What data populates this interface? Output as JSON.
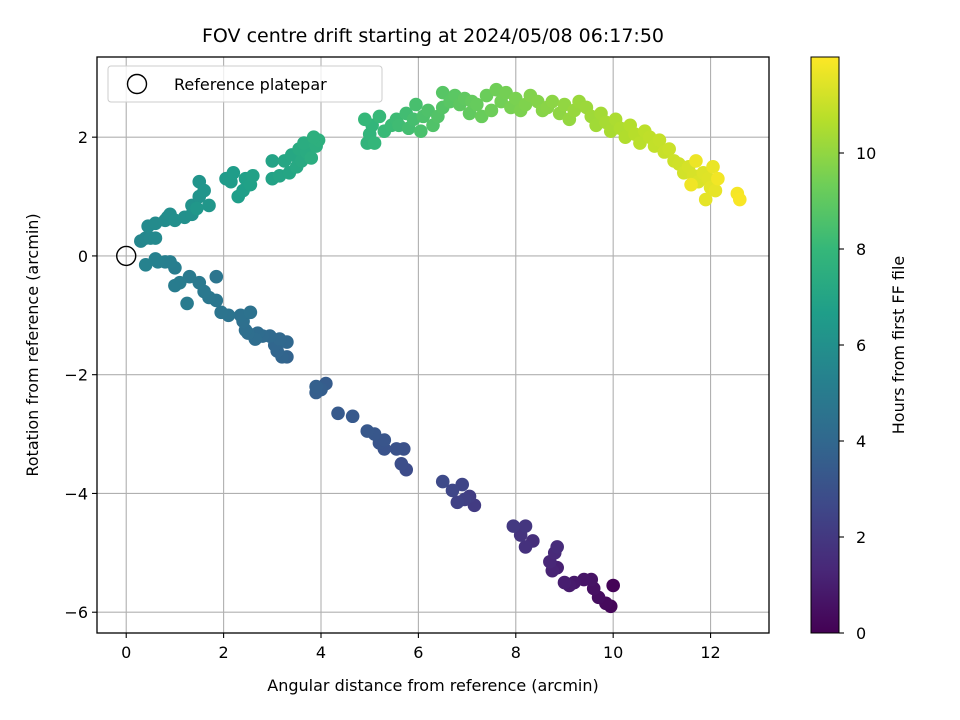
{
  "chart_data": {
    "type": "scatter",
    "title": "FOV centre drift starting at 2024/05/08 06:17:50",
    "xlabel": "Angular distance from reference (arcmin)",
    "ylabel": "Rotation from reference (arcmin)",
    "xlim": [
      -0.6,
      13.2
    ],
    "ylim": [
      -6.35,
      3.35
    ],
    "xticks": [
      0,
      2,
      4,
      6,
      8,
      10,
      12
    ],
    "yticks": [
      -6,
      -4,
      -2,
      0,
      2
    ],
    "grid": true,
    "legend": {
      "location": "upper-left",
      "entries": [
        "Reference platepar"
      ]
    },
    "reference_point": {
      "x": 0,
      "y": 0
    },
    "colorbar": {
      "label": "Hours from first FF file",
      "colormap": "viridis",
      "range": [
        0,
        12
      ],
      "ticks": [
        0,
        2,
        4,
        6,
        8,
        10
      ]
    },
    "points": [
      [
        10.0,
        -5.55,
        0.1
      ],
      [
        9.95,
        -5.9,
        0.2
      ],
      [
        9.85,
        -5.85,
        0.3
      ],
      [
        9.7,
        -5.75,
        0.4
      ],
      [
        9.6,
        -5.6,
        0.5
      ],
      [
        9.55,
        -5.45,
        0.6
      ],
      [
        9.4,
        -5.45,
        0.7
      ],
      [
        9.2,
        -5.5,
        0.8
      ],
      [
        9.1,
        -5.55,
        0.9
      ],
      [
        9.0,
        -5.5,
        1.0
      ],
      [
        8.85,
        -5.25,
        1.1
      ],
      [
        8.75,
        -5.3,
        1.2
      ],
      [
        8.7,
        -5.15,
        1.3
      ],
      [
        8.8,
        -5.0,
        1.4
      ],
      [
        8.85,
        -4.9,
        1.5
      ],
      [
        8.35,
        -4.8,
        1.6
      ],
      [
        8.2,
        -4.9,
        1.7
      ],
      [
        8.1,
        -4.7,
        1.8
      ],
      [
        8.2,
        -4.55,
        1.9
      ],
      [
        7.95,
        -4.55,
        2.0
      ],
      [
        7.15,
        -4.2,
        2.1
      ],
      [
        7.05,
        -4.05,
        2.2
      ],
      [
        6.95,
        -4.1,
        2.3
      ],
      [
        6.8,
        -4.15,
        2.4
      ],
      [
        6.9,
        -3.85,
        2.5
      ],
      [
        6.7,
        -3.95,
        2.6
      ],
      [
        6.5,
        -3.8,
        2.7
      ],
      [
        5.75,
        -3.6,
        2.8
      ],
      [
        5.65,
        -3.5,
        2.9
      ],
      [
        5.7,
        -3.25,
        3.0
      ],
      [
        5.55,
        -3.25,
        3.05
      ],
      [
        5.3,
        -3.25,
        3.1
      ],
      [
        5.2,
        -3.15,
        3.15
      ],
      [
        5.3,
        -3.1,
        3.2
      ],
      [
        5.1,
        -3.0,
        3.25
      ],
      [
        4.95,
        -2.95,
        3.3
      ],
      [
        4.65,
        -2.7,
        3.35
      ],
      [
        4.35,
        -2.65,
        3.4
      ],
      [
        4.1,
        -2.15,
        3.5
      ],
      [
        4.0,
        -2.25,
        3.55
      ],
      [
        3.9,
        -2.3,
        3.6
      ],
      [
        3.9,
        -2.2,
        3.65
      ],
      [
        3.3,
        -1.7,
        3.8
      ],
      [
        3.2,
        -1.7,
        3.85
      ],
      [
        3.1,
        -1.6,
        3.9
      ],
      [
        3.05,
        -1.5,
        3.95
      ],
      [
        3.3,
        -1.45,
        4.0
      ],
      [
        3.15,
        -1.4,
        4.05
      ],
      [
        2.95,
        -1.35,
        4.1
      ],
      [
        2.8,
        -1.35,
        4.15
      ],
      [
        2.7,
        -1.3,
        4.2
      ],
      [
        2.65,
        -1.4,
        4.25
      ],
      [
        2.5,
        -1.3,
        4.3
      ],
      [
        2.45,
        -1.25,
        4.35
      ],
      [
        2.4,
        -1.1,
        4.4
      ],
      [
        2.35,
        -1.0,
        4.45
      ],
      [
        2.55,
        -0.95,
        4.5
      ],
      [
        2.1,
        -1.0,
        4.55
      ],
      [
        1.95,
        -0.95,
        4.6
      ],
      [
        1.85,
        -0.35,
        4.65
      ],
      [
        1.85,
        -0.75,
        4.7
      ],
      [
        1.7,
        -0.7,
        4.75
      ],
      [
        1.6,
        -0.6,
        4.8
      ],
      [
        1.5,
        -0.45,
        4.85
      ],
      [
        1.3,
        -0.35,
        4.9
      ],
      [
        1.25,
        -0.8,
        4.95
      ],
      [
        1.1,
        -0.45,
        5.0
      ],
      [
        1.0,
        -0.5,
        5.05
      ],
      [
        1.0,
        -0.2,
        5.1
      ],
      [
        0.9,
        -0.1,
        5.15
      ],
      [
        0.8,
        -0.1,
        5.2
      ],
      [
        0.65,
        -0.1,
        5.25
      ],
      [
        0.6,
        -0.05,
        5.3
      ],
      [
        0.4,
        -0.15,
        5.35
      ],
      [
        0.3,
        0.25,
        5.5
      ],
      [
        0.4,
        0.3,
        5.55
      ],
      [
        0.5,
        0.3,
        5.6
      ],
      [
        0.6,
        0.3,
        5.65
      ],
      [
        0.45,
        0.5,
        5.7
      ],
      [
        0.6,
        0.55,
        5.75
      ],
      [
        0.8,
        0.6,
        5.8
      ],
      [
        0.85,
        0.65,
        5.85
      ],
      [
        0.9,
        0.7,
        5.9
      ],
      [
        1.0,
        0.6,
        5.95
      ],
      [
        1.2,
        0.65,
        6.0
      ],
      [
        1.35,
        0.7,
        6.05
      ],
      [
        1.35,
        0.85,
        6.1
      ],
      [
        1.5,
        1.0,
        6.15
      ],
      [
        1.5,
        1.25,
        6.2
      ],
      [
        1.6,
        1.1,
        6.25
      ],
      [
        1.7,
        0.85,
        6.3
      ],
      [
        1.45,
        0.8,
        6.35
      ],
      [
        2.05,
        1.3,
        6.5
      ],
      [
        2.15,
        1.25,
        6.55
      ],
      [
        2.2,
        1.4,
        6.6
      ],
      [
        2.3,
        1.0,
        6.65
      ],
      [
        2.4,
        1.1,
        6.7
      ],
      [
        2.45,
        1.3,
        6.75
      ],
      [
        2.55,
        1.2,
        6.8
      ],
      [
        2.6,
        1.35,
        6.85
      ],
      [
        3.0,
        1.3,
        6.9
      ],
      [
        3.0,
        1.6,
        6.95
      ],
      [
        3.15,
        1.35,
        7.0
      ],
      [
        3.35,
        1.4,
        7.05
      ],
      [
        3.25,
        1.6,
        7.1
      ],
      [
        3.4,
        1.7,
        7.15
      ],
      [
        3.5,
        1.5,
        7.2
      ],
      [
        3.6,
        1.6,
        7.25
      ],
      [
        3.55,
        1.8,
        7.3
      ],
      [
        3.7,
        1.75,
        7.35
      ],
      [
        3.65,
        1.9,
        7.4
      ],
      [
        3.8,
        1.65,
        7.45
      ],
      [
        3.9,
        1.85,
        7.5
      ],
      [
        3.95,
        1.95,
        7.55
      ],
      [
        3.85,
        2.0,
        7.6
      ],
      [
        4.95,
        1.9,
        7.8
      ],
      [
        5.0,
        2.05,
        7.85
      ],
      [
        5.05,
        2.2,
        7.9
      ],
      [
        5.1,
        1.9,
        7.95
      ],
      [
        4.9,
        2.3,
        8.0
      ],
      [
        5.2,
        2.35,
        8.05
      ],
      [
        5.3,
        2.1,
        8.1
      ],
      [
        5.45,
        2.2,
        8.15
      ],
      [
        5.55,
        2.3,
        8.2
      ],
      [
        5.6,
        2.2,
        8.25
      ],
      [
        5.75,
        2.4,
        8.3
      ],
      [
        5.8,
        2.15,
        8.35
      ],
      [
        5.9,
        2.3,
        8.4
      ],
      [
        5.95,
        2.55,
        8.45
      ],
      [
        6.05,
        2.1,
        8.5
      ],
      [
        6.1,
        2.35,
        8.55
      ],
      [
        6.2,
        2.45,
        8.6
      ],
      [
        6.3,
        2.2,
        8.65
      ],
      [
        6.4,
        2.35,
        8.7
      ],
      [
        6.5,
        2.5,
        8.75
      ],
      [
        6.5,
        2.75,
        8.8
      ],
      [
        6.65,
        2.6,
        8.85
      ],
      [
        6.75,
        2.7,
        8.9
      ],
      [
        6.85,
        2.55,
        8.95
      ],
      [
        6.95,
        2.65,
        9.0
      ],
      [
        7.05,
        2.4,
        9.05
      ],
      [
        7.1,
        2.6,
        9.1
      ],
      [
        7.2,
        2.55,
        9.15
      ],
      [
        7.3,
        2.35,
        9.2
      ],
      [
        7.4,
        2.7,
        9.25
      ],
      [
        7.5,
        2.45,
        9.3
      ],
      [
        7.6,
        2.8,
        9.35
      ],
      [
        7.7,
        2.6,
        9.4
      ],
      [
        7.8,
        2.75,
        9.45
      ],
      [
        7.9,
        2.5,
        9.5
      ],
      [
        8.0,
        2.65,
        9.55
      ],
      [
        8.1,
        2.45,
        9.6
      ],
      [
        8.2,
        2.55,
        9.65
      ],
      [
        8.3,
        2.7,
        9.7
      ],
      [
        8.45,
        2.6,
        9.75
      ],
      [
        8.55,
        2.45,
        9.8
      ],
      [
        8.65,
        2.5,
        9.85
      ],
      [
        8.75,
        2.6,
        9.9
      ],
      [
        8.9,
        2.4,
        9.95
      ],
      [
        9.0,
        2.55,
        10.0
      ],
      [
        9.1,
        2.3,
        10.05
      ],
      [
        9.2,
        2.45,
        10.1
      ],
      [
        9.3,
        2.6,
        10.15
      ],
      [
        9.45,
        2.5,
        10.2
      ],
      [
        9.55,
        2.35,
        10.25
      ],
      [
        9.65,
        2.2,
        10.3
      ],
      [
        9.75,
        2.4,
        10.35
      ],
      [
        9.85,
        2.25,
        10.4
      ],
      [
        9.95,
        2.1,
        10.45
      ],
      [
        10.05,
        2.3,
        10.5
      ],
      [
        10.15,
        2.15,
        10.55
      ],
      [
        10.25,
        2.0,
        10.6
      ],
      [
        10.35,
        2.2,
        10.65
      ],
      [
        10.45,
        2.05,
        10.7
      ],
      [
        10.55,
        1.9,
        10.75
      ],
      [
        10.65,
        2.1,
        10.8
      ],
      [
        10.75,
        2.0,
        10.85
      ],
      [
        10.85,
        1.85,
        10.9
      ],
      [
        10.95,
        1.95,
        10.95
      ],
      [
        11.05,
        1.75,
        11.0
      ],
      [
        11.15,
        1.8,
        11.05
      ],
      [
        11.25,
        1.6,
        11.1
      ],
      [
        11.35,
        1.55,
        11.15
      ],
      [
        11.45,
        1.4,
        11.2
      ],
      [
        11.55,
        1.5,
        11.25
      ],
      [
        11.65,
        1.35,
        11.3
      ],
      [
        11.75,
        1.25,
        11.35
      ],
      [
        11.85,
        1.4,
        11.4
      ],
      [
        11.95,
        1.3,
        11.45
      ],
      [
        12.0,
        1.15,
        11.5
      ],
      [
        11.9,
        0.95,
        11.55
      ],
      [
        12.1,
        1.1,
        11.6
      ],
      [
        12.05,
        1.5,
        11.65
      ],
      [
        11.7,
        1.6,
        11.7
      ],
      [
        11.6,
        1.2,
        11.75
      ],
      [
        12.15,
        1.3,
        11.8
      ],
      [
        12.55,
        1.05,
        11.85
      ],
      [
        12.6,
        0.95,
        11.9
      ]
    ]
  }
}
